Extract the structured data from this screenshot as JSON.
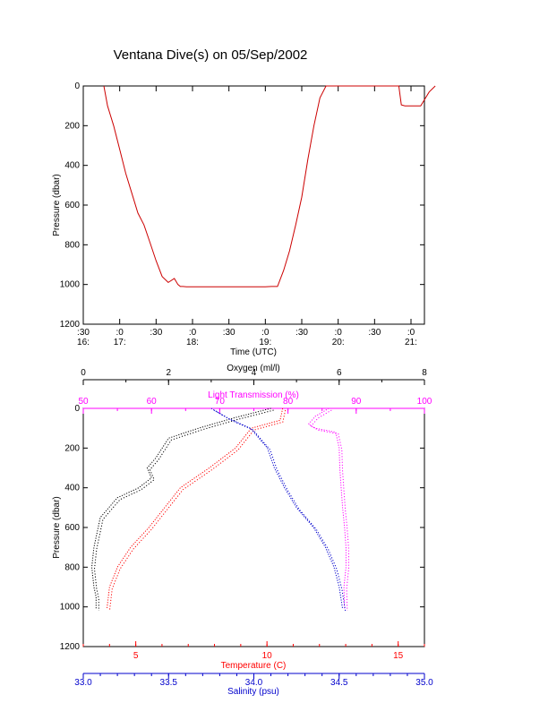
{
  "title": "Ventana Dive(s) on 05/Sep/2002",
  "colors": {
    "axis": "#000000",
    "oxygen": "#000000",
    "light_transmission": "#ff00ff",
    "temperature": "#ff0000",
    "salinity": "#0000cc",
    "depth_trace": "#cc0000"
  },
  "chart_data": [
    {
      "type": "line",
      "panel": "time-series",
      "xlabel": "Time (UTC)",
      "ylabel": "Pressure (dbar)",
      "ylim": [
        1200,
        0
      ],
      "y_ticks": [
        "0",
        "200",
        "400",
        "600",
        "800",
        "1000",
        "1200"
      ],
      "x_ticks": [
        {
          "top": ":30",
          "bottom": "16:"
        },
        {
          "top": ":0",
          "bottom": "17:"
        },
        {
          "top": ":30",
          "bottom": ""
        },
        {
          "top": ":0",
          "bottom": "18:"
        },
        {
          "top": ":30",
          "bottom": ""
        },
        {
          "top": ":0",
          "bottom": "19:"
        },
        {
          "top": ":30",
          "bottom": ""
        },
        {
          "top": ":0",
          "bottom": "20:"
        },
        {
          "top": ":30",
          "bottom": ""
        },
        {
          "top": ":0",
          "bottom": "21:"
        }
      ],
      "x_unit": "minutes since 16:30 UTC",
      "series": [
        {
          "x": [
            17,
            20,
            25,
            30,
            35,
            40,
            45,
            50,
            55,
            60,
            65,
            70,
            75,
            78,
            80,
            82,
            85,
            90,
            100,
            110,
            120,
            130,
            140,
            150,
            155,
            160,
            165,
            170,
            175,
            180,
            185,
            190,
            195,
            200,
            210,
            220,
            230,
            240,
            250,
            255,
            260,
            262,
            265,
            270,
            278,
            285,
            290
          ],
          "y": [
            0,
            100,
            200,
            320,
            440,
            540,
            640,
            700,
            790,
            880,
            960,
            990,
            970,
            1000,
            1010,
            1010,
            1012,
            1012,
            1012,
            1012,
            1012,
            1012,
            1012,
            1012,
            1010,
            1010,
            930,
            830,
            700,
            560,
            370,
            200,
            60,
            0,
            0,
            0,
            0,
            0,
            0,
            0,
            0,
            95,
            100,
            100,
            100,
            30,
            0
          ]
        }
      ]
    },
    {
      "type": "scatter",
      "panel": "profile",
      "ylabel": "Pressure (dbar)",
      "ylim": [
        1200,
        0
      ],
      "y_ticks": [
        "0",
        "200",
        "400",
        "600",
        "800",
        "1000",
        "1200"
      ],
      "axes": [
        {
          "label": "Oxygen (ml/l)",
          "range": [
            0,
            8
          ],
          "ticks": [
            "0",
            "2",
            "4",
            "6",
            "8"
          ],
          "color_key": "oxygen"
        },
        {
          "label": "Light Transmission (%)",
          "range": [
            50,
            100
          ],
          "ticks": [
            "50",
            "60",
            "70",
            "80",
            "90",
            "100"
          ],
          "color_key": "light_transmission"
        },
        {
          "label": "Temperature (C)",
          "range": [
            3,
            16
          ],
          "ticks": [
            "5",
            "10",
            "15"
          ],
          "color_key": "temperature"
        },
        {
          "label": "Salinity (psu)",
          "range": [
            33.0,
            35.0
          ],
          "ticks": [
            "33.0",
            "33.5",
            "34.0",
            "34.5",
            "35.0"
          ],
          "color_key": "salinity"
        }
      ],
      "series": [
        {
          "axis": 0,
          "color_key": "oxygen",
          "values": [
            4.4,
            3.5,
            2.7,
            2.0,
            1.7,
            1.5,
            1.6,
            1.3,
            0.8,
            0.4,
            0.25,
            0.2,
            0.25,
            0.3,
            0.3
          ],
          "pressure": [
            0,
            50,
            100,
            150,
            250,
            300,
            350,
            400,
            450,
            550,
            700,
            800,
            900,
            950,
            1010
          ]
        },
        {
          "axis": 1,
          "color_key": "light_transmission",
          "values": [
            86,
            84,
            83,
            84,
            87,
            87.5,
            87.6,
            87.8,
            88,
            88.3,
            88.5,
            88.5,
            88.2,
            88.3
          ],
          "pressure": [
            0,
            40,
            80,
            100,
            120,
            200,
            300,
            400,
            500,
            600,
            700,
            800,
            900,
            1010
          ]
        },
        {
          "axis": 2,
          "color_key": "temperature",
          "values": [
            10.6,
            10.5,
            9.4,
            8.8,
            7.8,
            6.7,
            5.5,
            4.8,
            4.3,
            4.0,
            3.9
          ],
          "pressure": [
            0,
            60,
            100,
            200,
            300,
            400,
            600,
            700,
            800,
            900,
            1010
          ]
        },
        {
          "axis": 3,
          "color_key": "salinity",
          "values": [
            33.75,
            33.85,
            33.98,
            34.08,
            34.12,
            34.18,
            34.25,
            34.35,
            34.42,
            34.47,
            34.5,
            34.52
          ],
          "pressure": [
            0,
            50,
            100,
            200,
            300,
            400,
            500,
            600,
            700,
            800,
            900,
            1010
          ]
        }
      ]
    }
  ]
}
